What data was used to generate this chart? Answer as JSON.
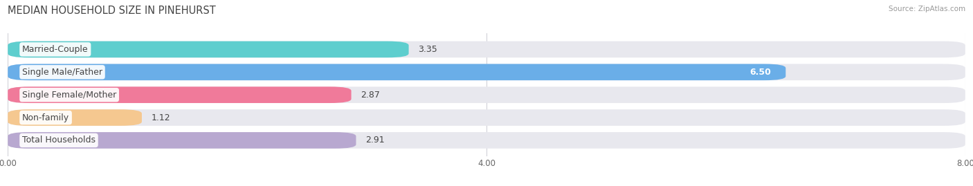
{
  "title": "MEDIAN HOUSEHOLD SIZE IN PINEHURST",
  "source": "Source: ZipAtlas.com",
  "categories": [
    "Married-Couple",
    "Single Male/Father",
    "Single Female/Mother",
    "Non-family",
    "Total Households"
  ],
  "values": [
    3.35,
    6.5,
    2.87,
    1.12,
    2.91
  ],
  "bar_colors": [
    "#5ecece",
    "#6aaee8",
    "#f07a9a",
    "#f5c890",
    "#b8a8d0"
  ],
  "bar_bg_colors": [
    "#e8e8ee",
    "#e8e8ee",
    "#e8e8ee",
    "#e8e8ee",
    "#e8e8ee"
  ],
  "value_inside": [
    false,
    true,
    false,
    false,
    false
  ],
  "xlim": [
    0,
    8.0
  ],
  "xticks": [
    0.0,
    4.0,
    8.0
  ],
  "xtick_labels": [
    "0.00",
    "4.00",
    "8.00"
  ],
  "figsize": [
    14.06,
    2.69
  ],
  "dpi": 100,
  "title_fontsize": 10.5,
  "bar_label_fontsize": 9,
  "category_fontsize": 9,
  "bar_height": 0.72,
  "background_color": "#ffffff",
  "grid_color": "#d0d0d8"
}
